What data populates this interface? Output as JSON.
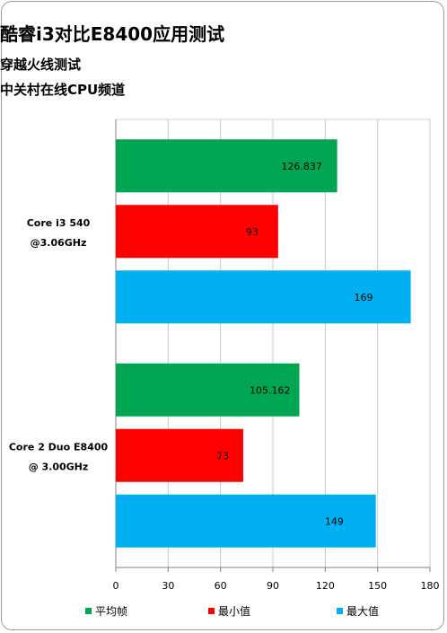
{
  "chart_data": {
    "type": "bar",
    "orientation": "horizontal",
    "title": "酷睿i3对比E8400应用测试",
    "subtitle": "穿越火线测试",
    "source": "中关村在线CPU频道",
    "categories": [
      "Core i3 540\n@3.06GHz",
      "Core 2 Duo E8400\n@ 3.00GHz"
    ],
    "category_lines": [
      [
        "Core i3 540",
        "@3.06GHz"
      ],
      [
        "Core 2 Duo E8400",
        "@ 3.00GHz"
      ]
    ],
    "series": [
      {
        "name": "平均帧",
        "color": "#00a651",
        "values": [
          126.837,
          105.162
        ],
        "labels": [
          "126.837",
          "105.162"
        ]
      },
      {
        "name": "最小值",
        "color": "#ff0000",
        "values": [
          93,
          73
        ],
        "labels": [
          "93",
          "73"
        ]
      },
      {
        "name": "最大值",
        "color": "#00b0f0",
        "values": [
          169,
          149
        ],
        "labels": [
          "169",
          "149"
        ]
      }
    ],
    "xlim": [
      0,
      180
    ],
    "xticks": [
      0,
      30,
      60,
      90,
      120,
      150,
      180
    ],
    "grid": true,
    "legend_position": "bottom"
  }
}
